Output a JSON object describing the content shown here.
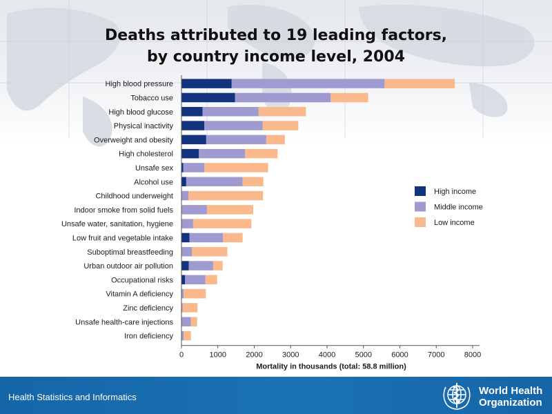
{
  "title": {
    "line1": "Deaths attributed to 19 leading factors,",
    "line2": "by country income level, 2004"
  },
  "footer": {
    "text": "Health Statistics and Informatics",
    "org_line1": "World Health",
    "org_line2": "Organization"
  },
  "colors": {
    "high_income": "#13337f",
    "middle_income": "#9f9ad0",
    "low_income": "#f9b98c",
    "footer_blue": "#1a6db2"
  },
  "chart_data": {
    "type": "bar",
    "orientation": "horizontal",
    "stacked": true,
    "categories": [
      "High blood pressure",
      "Tobacco use",
      "High blood glucose",
      "Physical inactivity",
      "Overweight and obesity",
      "High cholesterol",
      "Unsafe sex",
      "Alcohol use",
      "Childhood underweight",
      "Indoor smoke from solid fuels",
      "Unsafe water, sanitation, hygiene",
      "Low fruit and vegetable intake",
      "Suboptimal breastfeeding",
      "Urban outdoor air pollution",
      "Occupational risks",
      "Vitamin A deficiency",
      "Zinc deficiency",
      "Unsafe health-care injections",
      "Iron deficiency"
    ],
    "series": [
      {
        "name": "High income",
        "color": "#13337f",
        "values": [
          1380,
          1470,
          580,
          630,
          680,
          480,
          50,
          130,
          0,
          0,
          0,
          220,
          0,
          200,
          100,
          0,
          0,
          0,
          0
        ]
      },
      {
        "name": "Middle income",
        "color": "#9f9ad0",
        "values": [
          4200,
          2630,
          1540,
          1600,
          1650,
          1270,
          580,
          1550,
          190,
          700,
          320,
          920,
          290,
          670,
          560,
          60,
          30,
          260,
          60
        ]
      },
      {
        "name": "Low income",
        "color": "#f9b98c",
        "values": [
          1930,
          1030,
          1300,
          980,
          510,
          890,
          1750,
          570,
          2050,
          1270,
          1600,
          540,
          970,
          260,
          320,
          610,
          410,
          170,
          200
        ]
      }
    ],
    "xlabel": "Mortality in thousands (total: 58.8 million)",
    "ylabel": "",
    "xlim": [
      0,
      8000
    ],
    "xticks": [
      0,
      1000,
      2000,
      3000,
      4000,
      5000,
      6000,
      7000,
      8000
    ],
    "legend": {
      "position": "right",
      "entries": [
        "High income",
        "Middle income",
        "Low income"
      ]
    },
    "grid": false
  }
}
